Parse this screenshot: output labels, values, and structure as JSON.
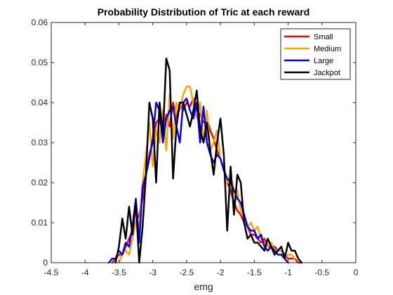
{
  "chart_data": {
    "type": "line",
    "title": "Probability Distribution of Tric at each reward",
    "xlabel": "emg",
    "ylabel": "",
    "xlim": [
      -4.5,
      0
    ],
    "ylim": [
      0,
      0.06
    ],
    "xticks": [
      -4.5,
      -4,
      -3.5,
      -3,
      -2.5,
      -2,
      -1.5,
      -1,
      -0.5,
      0
    ],
    "xtick_labels": [
      "-4.5",
      "-4",
      "-3.5",
      "-3",
      "-2.5",
      "-2",
      "-1.5",
      "-1",
      "-0.5",
      "0"
    ],
    "yticks": [
      0,
      0.01,
      0.02,
      0.03,
      0.04,
      0.05,
      0.06
    ],
    "ytick_labels": [
      "0",
      "0.01",
      "0.02",
      "0.03",
      "0.04",
      "0.05",
      "0.06"
    ],
    "grid": false,
    "legend_position": "top-right",
    "series": [
      {
        "name": "Small",
        "color": "#ff0000",
        "x": [
          -3.6,
          -3.55,
          -3.5,
          -3.45,
          -3.4,
          -3.35,
          -3.3,
          -3.25,
          -3.2,
          -3.15,
          -3.1,
          -3.05,
          -3.0,
          -2.95,
          -2.9,
          -2.85,
          -2.8,
          -2.75,
          -2.7,
          -2.65,
          -2.6,
          -2.55,
          -2.5,
          -2.45,
          -2.4,
          -2.35,
          -2.3,
          -2.25,
          -2.2,
          -2.15,
          -2.1,
          -2.05,
          -2.0,
          -1.95,
          -1.9,
          -1.85,
          -1.8,
          -1.75,
          -1.7,
          -1.65,
          -1.6,
          -1.55,
          -1.5,
          -1.45,
          -1.4,
          -1.35,
          -1.3,
          -1.25,
          -1.2,
          -1.15,
          -1.1,
          -1.05,
          -1.0,
          -0.95,
          -0.9,
          -0.85,
          -0.8
        ],
        "values": [
          0,
          0.001,
          0.002,
          0.002,
          0.004,
          0.006,
          0.008,
          0.01,
          0.012,
          0.016,
          0.022,
          0.027,
          0.03,
          0.035,
          0.036,
          0.032,
          0.037,
          0.034,
          0.04,
          0.036,
          0.04,
          0.038,
          0.04,
          0.039,
          0.041,
          0.038,
          0.037,
          0.035,
          0.036,
          0.033,
          0.031,
          0.028,
          0.026,
          0.024,
          0.02,
          0.018,
          0.015,
          0.013,
          0.012,
          0.01,
          0.009,
          0.007,
          0.007,
          0.006,
          0.005,
          0.006,
          0.004,
          0.004,
          0.004,
          0.003,
          0.003,
          0.002,
          0.001,
          0.001,
          0.001,
          0,
          0
        ]
      },
      {
        "name": "Medium",
        "color": "#ffa500",
        "x": [
          -3.5,
          -3.45,
          -3.4,
          -3.35,
          -3.3,
          -3.25,
          -3.2,
          -3.15,
          -3.1,
          -3.05,
          -3.0,
          -2.95,
          -2.9,
          -2.85,
          -2.8,
          -2.75,
          -2.7,
          -2.65,
          -2.6,
          -2.55,
          -2.5,
          -2.45,
          -2.4,
          -2.35,
          -2.3,
          -2.25,
          -2.2,
          -2.15,
          -2.1,
          -2.05,
          -2.0,
          -1.95,
          -1.9,
          -1.85,
          -1.8,
          -1.75,
          -1.7,
          -1.65,
          -1.6,
          -1.55,
          -1.5,
          -1.45,
          -1.4,
          -1.35,
          -1.3,
          -1.25,
          -1.2,
          -1.15,
          -1.1,
          -1.05,
          -1.0,
          -0.95,
          -0.9
        ],
        "values": [
          0,
          0.002,
          0.003,
          0.002,
          0.006,
          0.01,
          0.009,
          0.02,
          0.027,
          0.035,
          0.024,
          0.033,
          0.03,
          0.038,
          0.028,
          0.042,
          0.031,
          0.04,
          0.038,
          0.042,
          0.044,
          0.044,
          0.04,
          0.036,
          0.04,
          0.03,
          0.038,
          0.028,
          0.03,
          0.033,
          0.026,
          0.024,
          0.02,
          0.022,
          0.018,
          0.018,
          0.013,
          0.012,
          0.009,
          0.01,
          0.008,
          0.009,
          0.006,
          0.005,
          0.004,
          0.005,
          0.003,
          0.003,
          0.003,
          0.001,
          0.002,
          0.002,
          0.001
        ]
      },
      {
        "name": "Large",
        "color": "#0000ff",
        "x": [
          -3.65,
          -3.6,
          -3.55,
          -3.5,
          -3.45,
          -3.4,
          -3.35,
          -3.3,
          -3.25,
          -3.2,
          -3.15,
          -3.1,
          -3.05,
          -3.0,
          -2.95,
          -2.9,
          -2.85,
          -2.8,
          -2.75,
          -2.7,
          -2.65,
          -2.6,
          -2.55,
          -2.5,
          -2.45,
          -2.4,
          -2.35,
          -2.3,
          -2.25,
          -2.2,
          -2.15,
          -2.1,
          -2.05,
          -2.0,
          -1.95,
          -1.9,
          -1.85,
          -1.8,
          -1.75,
          -1.7,
          -1.65,
          -1.6,
          -1.55,
          -1.5,
          -1.45,
          -1.4,
          -1.35,
          -1.3,
          -1.25,
          -1.2,
          -1.15,
          -1.1,
          -1.05,
          -1.0
        ],
        "values": [
          0,
          0.001,
          0.001,
          0.003,
          0.002,
          0.005,
          0.004,
          0.009,
          0.016,
          0.005,
          0.019,
          0.022,
          0.026,
          0.031,
          0.04,
          0.038,
          0.03,
          0.036,
          0.038,
          0.039,
          0.034,
          0.03,
          0.04,
          0.041,
          0.038,
          0.036,
          0.04,
          0.03,
          0.039,
          0.03,
          0.027,
          0.025,
          0.027,
          0.026,
          0.023,
          0.021,
          0.02,
          0.018,
          0.016,
          0.015,
          0.012,
          0.009,
          0.008,
          0.008,
          0.006,
          0.007,
          0.004,
          0.003,
          0.004,
          0.003,
          0.002,
          0.002,
          0.001,
          0
        ]
      },
      {
        "name": "Jackpot",
        "color": "#000000",
        "x": [
          -3.55,
          -3.5,
          -3.45,
          -3.4,
          -3.35,
          -3.3,
          -3.25,
          -3.2,
          -3.15,
          -3.1,
          -3.05,
          -3.0,
          -2.95,
          -2.9,
          -2.85,
          -2.8,
          -2.75,
          -2.7,
          -2.65,
          -2.6,
          -2.55,
          -2.5,
          -2.45,
          -2.4,
          -2.35,
          -2.3,
          -2.25,
          -2.2,
          -2.15,
          -2.1,
          -2.05,
          -2.0,
          -1.95,
          -1.9,
          -1.85,
          -1.8,
          -1.75,
          -1.7,
          -1.65,
          -1.6,
          -1.55,
          -1.5,
          -1.45,
          -1.4,
          -1.35,
          -1.3,
          -1.25,
          -1.2,
          -1.15,
          -1.1,
          -1.05,
          -1.0,
          -0.95,
          -0.9,
          -0.85,
          -0.8
        ],
        "values": [
          0,
          0.004,
          0.011,
          0.006,
          0.014,
          0.007,
          0.015,
          0,
          0.009,
          0.022,
          0.04,
          0.036,
          0.02,
          0.04,
          0.032,
          0.051,
          0.048,
          0.021,
          0.034,
          0.04,
          0.04,
          0.037,
          0.034,
          0.038,
          0.043,
          0.033,
          0.03,
          0.035,
          0.028,
          0.022,
          0.03,
          0.036,
          0.027,
          0.008,
          0.024,
          0.012,
          0.022,
          0.02,
          0.01,
          0.006,
          0.007,
          0.005,
          0.005,
          0.004,
          0.003,
          0.006,
          0.004,
          0.002,
          0.003,
          0.004,
          0.001,
          0.005,
          0.003,
          0.003,
          0.001,
          0
        ]
      }
    ]
  }
}
